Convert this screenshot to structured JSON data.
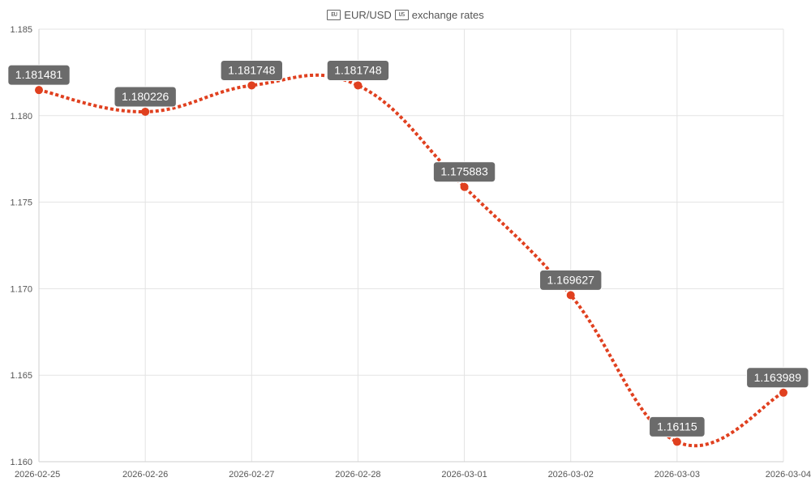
{
  "title": {
    "base_flag_icon": "eu-flag-icon",
    "base": "EUR/USD",
    "quote_flag_icon": "us-flag-icon",
    "quote": "exchange rates",
    "flag_base_text": "EU",
    "flag_quote_text": "US"
  },
  "colors": {
    "line": "#e0401f",
    "point": "#e0401f",
    "label_bg": "#6b6b6b",
    "grid": "#e3e3e3"
  },
  "chart_data": {
    "type": "line",
    "title": "EUR/USD exchange rates",
    "x": [
      "2026-02-25",
      "2026-02-26",
      "2026-02-27",
      "2026-02-28",
      "2026-03-01",
      "2026-03-02",
      "2026-03-03",
      "2026-03-04"
    ],
    "series": [
      {
        "values": [
          1.181481,
          1.180226,
          1.181748,
          1.181748,
          1.175883,
          1.169627,
          1.16115,
          1.163989
        ],
        "labels": [
          "1.181481",
          "1.180226",
          "1.181748",
          "1.181748",
          "1.175883",
          "1.169627",
          "1.16115",
          "1.163989"
        ]
      }
    ],
    "ylim": [
      1.16,
      1.185
    ],
    "yticks": [
      "1.160",
      "1.165",
      "1.170",
      "1.175",
      "1.180",
      "1.185"
    ],
    "line_style": "dotted",
    "smooth": true,
    "grid": true,
    "legend": "none",
    "data_labels": true
  }
}
